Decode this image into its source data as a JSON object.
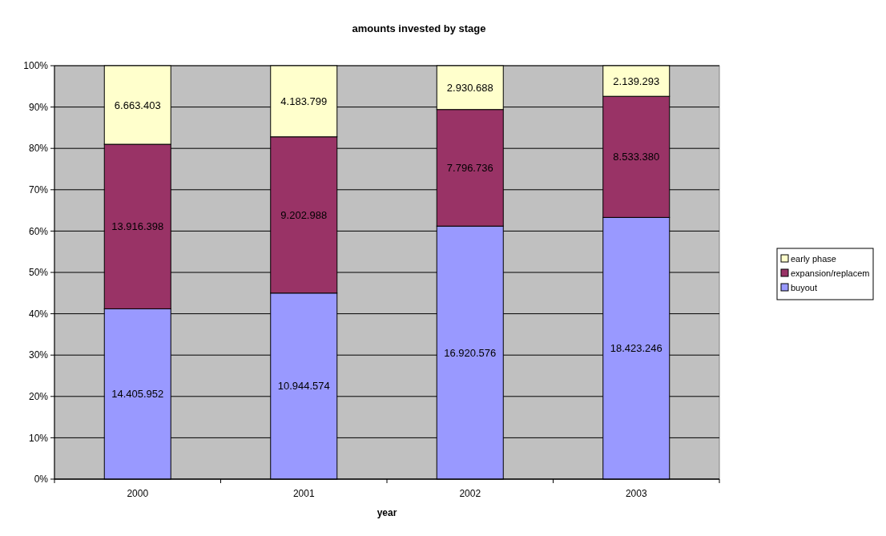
{
  "chart_data": {
    "type": "bar",
    "title": "amounts invested by stage",
    "xlabel": "year",
    "categories": [
      "2000",
      "2001",
      "2002",
      "2003"
    ],
    "stacked": true,
    "ylim": [
      0,
      100
    ],
    "yticks": [
      {
        "value": 0,
        "label": "0%"
      },
      {
        "value": 10,
        "label": "10%"
      },
      {
        "value": 20,
        "label": "20%"
      },
      {
        "value": 30,
        "label": "30%"
      },
      {
        "value": 40,
        "label": "40%"
      },
      {
        "value": 50,
        "label": "50%"
      },
      {
        "value": 60,
        "label": "60%"
      },
      {
        "value": 70,
        "label": "70%"
      },
      {
        "value": 80,
        "label": "80%"
      },
      {
        "value": 90,
        "label": "90%"
      },
      {
        "value": 100,
        "label": "100%"
      }
    ],
    "grid": "y",
    "legend": "right",
    "series": [
      {
        "name": "buyout",
        "color": "#9999ff",
        "values": [
          41.2,
          45.0,
          61.2,
          63.3
        ]
      },
      {
        "name": "expansion/replacem",
        "color": "#993366",
        "values": [
          39.8,
          37.8,
          28.2,
          29.3
        ]
      },
      {
        "name": "early phase",
        "color": "#ffffcc",
        "values": [
          19.0,
          17.2,
          10.6,
          7.4
        ]
      }
    ],
    "annotations": [
      "14.405.952",
      "10.944.574",
      "16.920.576",
      "18.423.246",
      "13.916.398",
      "9.202.988",
      "7.796.736",
      "8.533.380",
      "6.663.403",
      "4.183.799",
      "2.930.688",
      "2.139.293"
    ]
  }
}
